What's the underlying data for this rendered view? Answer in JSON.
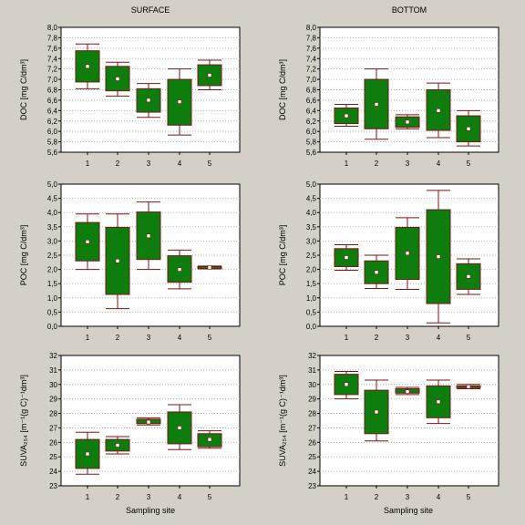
{
  "titles": {
    "left": "SURFACE",
    "right": "BOTTOM"
  },
  "xlabel": "Sampling site",
  "colors": {
    "box": "#0d7d0d",
    "border": "#7a1515",
    "median": "#ffffff",
    "plot_bg": "#ffffff",
    "grid": "#b4b4b4",
    "page_bg": "#d4d0c8"
  },
  "chart_data": [
    {
      "type": "box",
      "panel": "SURFACE",
      "ylabel": "DOC [mg C/dm³]",
      "ylim": [
        5.6,
        8.0
      ],
      "yticks": [
        "5,6",
        "5,8",
        "6,0",
        "6,2",
        "6,4",
        "6,6",
        "6,8",
        "7,0",
        "7,2",
        "7,4",
        "7,6",
        "7,8",
        "8,0"
      ],
      "categories": [
        "1",
        "2",
        "3",
        "4",
        "5"
      ],
      "boxes": [
        {
          "min": 6.82,
          "q1": 6.95,
          "median": 7.25,
          "q3": 7.55,
          "max": 7.68
        },
        {
          "min": 6.68,
          "q1": 6.78,
          "median": 7.01,
          "q3": 7.25,
          "max": 7.33
        },
        {
          "min": 6.27,
          "q1": 6.37,
          "median": 6.6,
          "q3": 6.82,
          "max": 6.92
        },
        {
          "min": 5.93,
          "q1": 6.12,
          "median": 6.57,
          "q3": 7.0,
          "max": 7.2
        },
        {
          "min": 6.8,
          "q1": 6.88,
          "median": 7.08,
          "q3": 7.28,
          "max": 7.37
        }
      ]
    },
    {
      "type": "box",
      "panel": "BOTTOM",
      "ylabel": "DOC [mg C/dm³]",
      "ylim": [
        5.6,
        8.0
      ],
      "yticks": [
        "5,6",
        "5,8",
        "6,0",
        "6,2",
        "6,4",
        "6,6",
        "6,8",
        "7,0",
        "7,2",
        "7,4",
        "7,6",
        "7,8",
        "8,0"
      ],
      "categories": [
        "1",
        "2",
        "3",
        "4",
        "5"
      ],
      "boxes": [
        {
          "min": 6.1,
          "q1": 6.15,
          "median": 6.3,
          "q3": 6.45,
          "max": 6.52
        },
        {
          "min": 5.85,
          "q1": 6.05,
          "median": 6.52,
          "q3": 7.0,
          "max": 7.2
        },
        {
          "min": 6.05,
          "q1": 6.08,
          "median": 6.18,
          "q3": 6.28,
          "max": 6.32
        },
        {
          "min": 5.88,
          "q1": 6.02,
          "median": 6.4,
          "q3": 6.8,
          "max": 6.93
        },
        {
          "min": 5.72,
          "q1": 5.8,
          "median": 6.05,
          "q3": 6.3,
          "max": 6.4
        }
      ]
    },
    {
      "type": "box",
      "panel": "SURFACE",
      "ylabel": "POC [mg C/dm³]",
      "ylim": [
        0.0,
        5.0
      ],
      "yticks": [
        "0,0",
        "0,5",
        "1,0",
        "1,5",
        "2,0",
        "2,5",
        "3,0",
        "3,5",
        "4,0",
        "4,5",
        "5,0"
      ],
      "categories": [
        "1",
        "2",
        "3",
        "4",
        "5"
      ],
      "boxes": [
        {
          "min": 2.0,
          "q1": 2.3,
          "median": 2.97,
          "q3": 3.65,
          "max": 3.95
        },
        {
          "min": 0.62,
          "q1": 1.12,
          "median": 2.3,
          "q3": 3.48,
          "max": 3.95
        },
        {
          "min": 2.0,
          "q1": 2.35,
          "median": 3.18,
          "q3": 4.02,
          "max": 4.37
        },
        {
          "min": 1.32,
          "q1": 1.55,
          "median": 2.0,
          "q3": 2.48,
          "max": 2.68
        },
        {
          "min": 2.02,
          "q1": 2.05,
          "median": 2.07,
          "q3": 2.1,
          "max": 2.12
        }
      ]
    },
    {
      "type": "box",
      "panel": "BOTTOM",
      "ylabel": "POC [mg C/dm³]",
      "ylim": [
        0.0,
        5.0
      ],
      "yticks": [
        "0,0",
        "0,5",
        "1,0",
        "1,5",
        "2,0",
        "2,5",
        "3,0",
        "3,5",
        "4,0",
        "4,5",
        "5,0"
      ],
      "categories": [
        "1",
        "2",
        "3",
        "4",
        "5"
      ],
      "boxes": [
        {
          "min": 1.97,
          "q1": 2.1,
          "median": 2.42,
          "q3": 2.73,
          "max": 2.87
        },
        {
          "min": 1.33,
          "q1": 1.5,
          "median": 1.9,
          "q3": 2.3,
          "max": 2.5
        },
        {
          "min": 1.3,
          "q1": 1.65,
          "median": 2.57,
          "q3": 3.48,
          "max": 3.82
        },
        {
          "min": 0.12,
          "q1": 0.8,
          "median": 2.45,
          "q3": 4.1,
          "max": 4.78
        },
        {
          "min": 1.12,
          "q1": 1.3,
          "median": 1.75,
          "q3": 2.2,
          "max": 2.37
        }
      ]
    },
    {
      "type": "box",
      "panel": "SURFACE",
      "ylabel": "SUVA₂₅₄ [m⁻¹(g C)⁻¹dm³]",
      "ylim": [
        23,
        32
      ],
      "yticks": [
        "23",
        "24",
        "25",
        "26",
        "27",
        "28",
        "29",
        "30",
        "31",
        "32"
      ],
      "categories": [
        "1",
        "2",
        "3",
        "4",
        "5"
      ],
      "boxes": [
        {
          "min": 23.8,
          "q1": 24.2,
          "median": 25.2,
          "q3": 26.2,
          "max": 26.7
        },
        {
          "min": 25.2,
          "q1": 25.4,
          "median": 25.8,
          "q3": 26.2,
          "max": 26.4
        },
        {
          "min": 27.2,
          "q1": 27.3,
          "median": 27.4,
          "q3": 27.6,
          "max": 27.7
        },
        {
          "min": 25.5,
          "q1": 25.9,
          "median": 27.0,
          "q3": 28.1,
          "max": 28.6
        },
        {
          "min": 25.6,
          "q1": 25.7,
          "median": 26.2,
          "q3": 26.6,
          "max": 26.8
        }
      ]
    },
    {
      "type": "box",
      "panel": "BOTTOM",
      "ylabel": "SUVA₂₅₄ [m⁻¹(g C)⁻¹dm³]",
      "ylim": [
        23,
        32
      ],
      "yticks": [
        "23",
        "24",
        "25",
        "26",
        "27",
        "28",
        "29",
        "30",
        "31",
        "32"
      ],
      "categories": [
        "1",
        "2",
        "3",
        "4",
        "5"
      ],
      "boxes": [
        {
          "min": 29.0,
          "q1": 29.3,
          "median": 30.0,
          "q3": 30.7,
          "max": 30.9
        },
        {
          "min": 26.1,
          "q1": 26.6,
          "median": 28.1,
          "q3": 29.6,
          "max": 30.3
        },
        {
          "min": 29.3,
          "q1": 29.4,
          "median": 29.5,
          "q3": 29.7,
          "max": 29.8
        },
        {
          "min": 27.3,
          "q1": 27.7,
          "median": 28.8,
          "q3": 29.9,
          "max": 30.3
        },
        {
          "min": 29.7,
          "q1": 29.8,
          "median": 29.85,
          "q3": 29.9,
          "max": 30.0
        }
      ]
    }
  ]
}
